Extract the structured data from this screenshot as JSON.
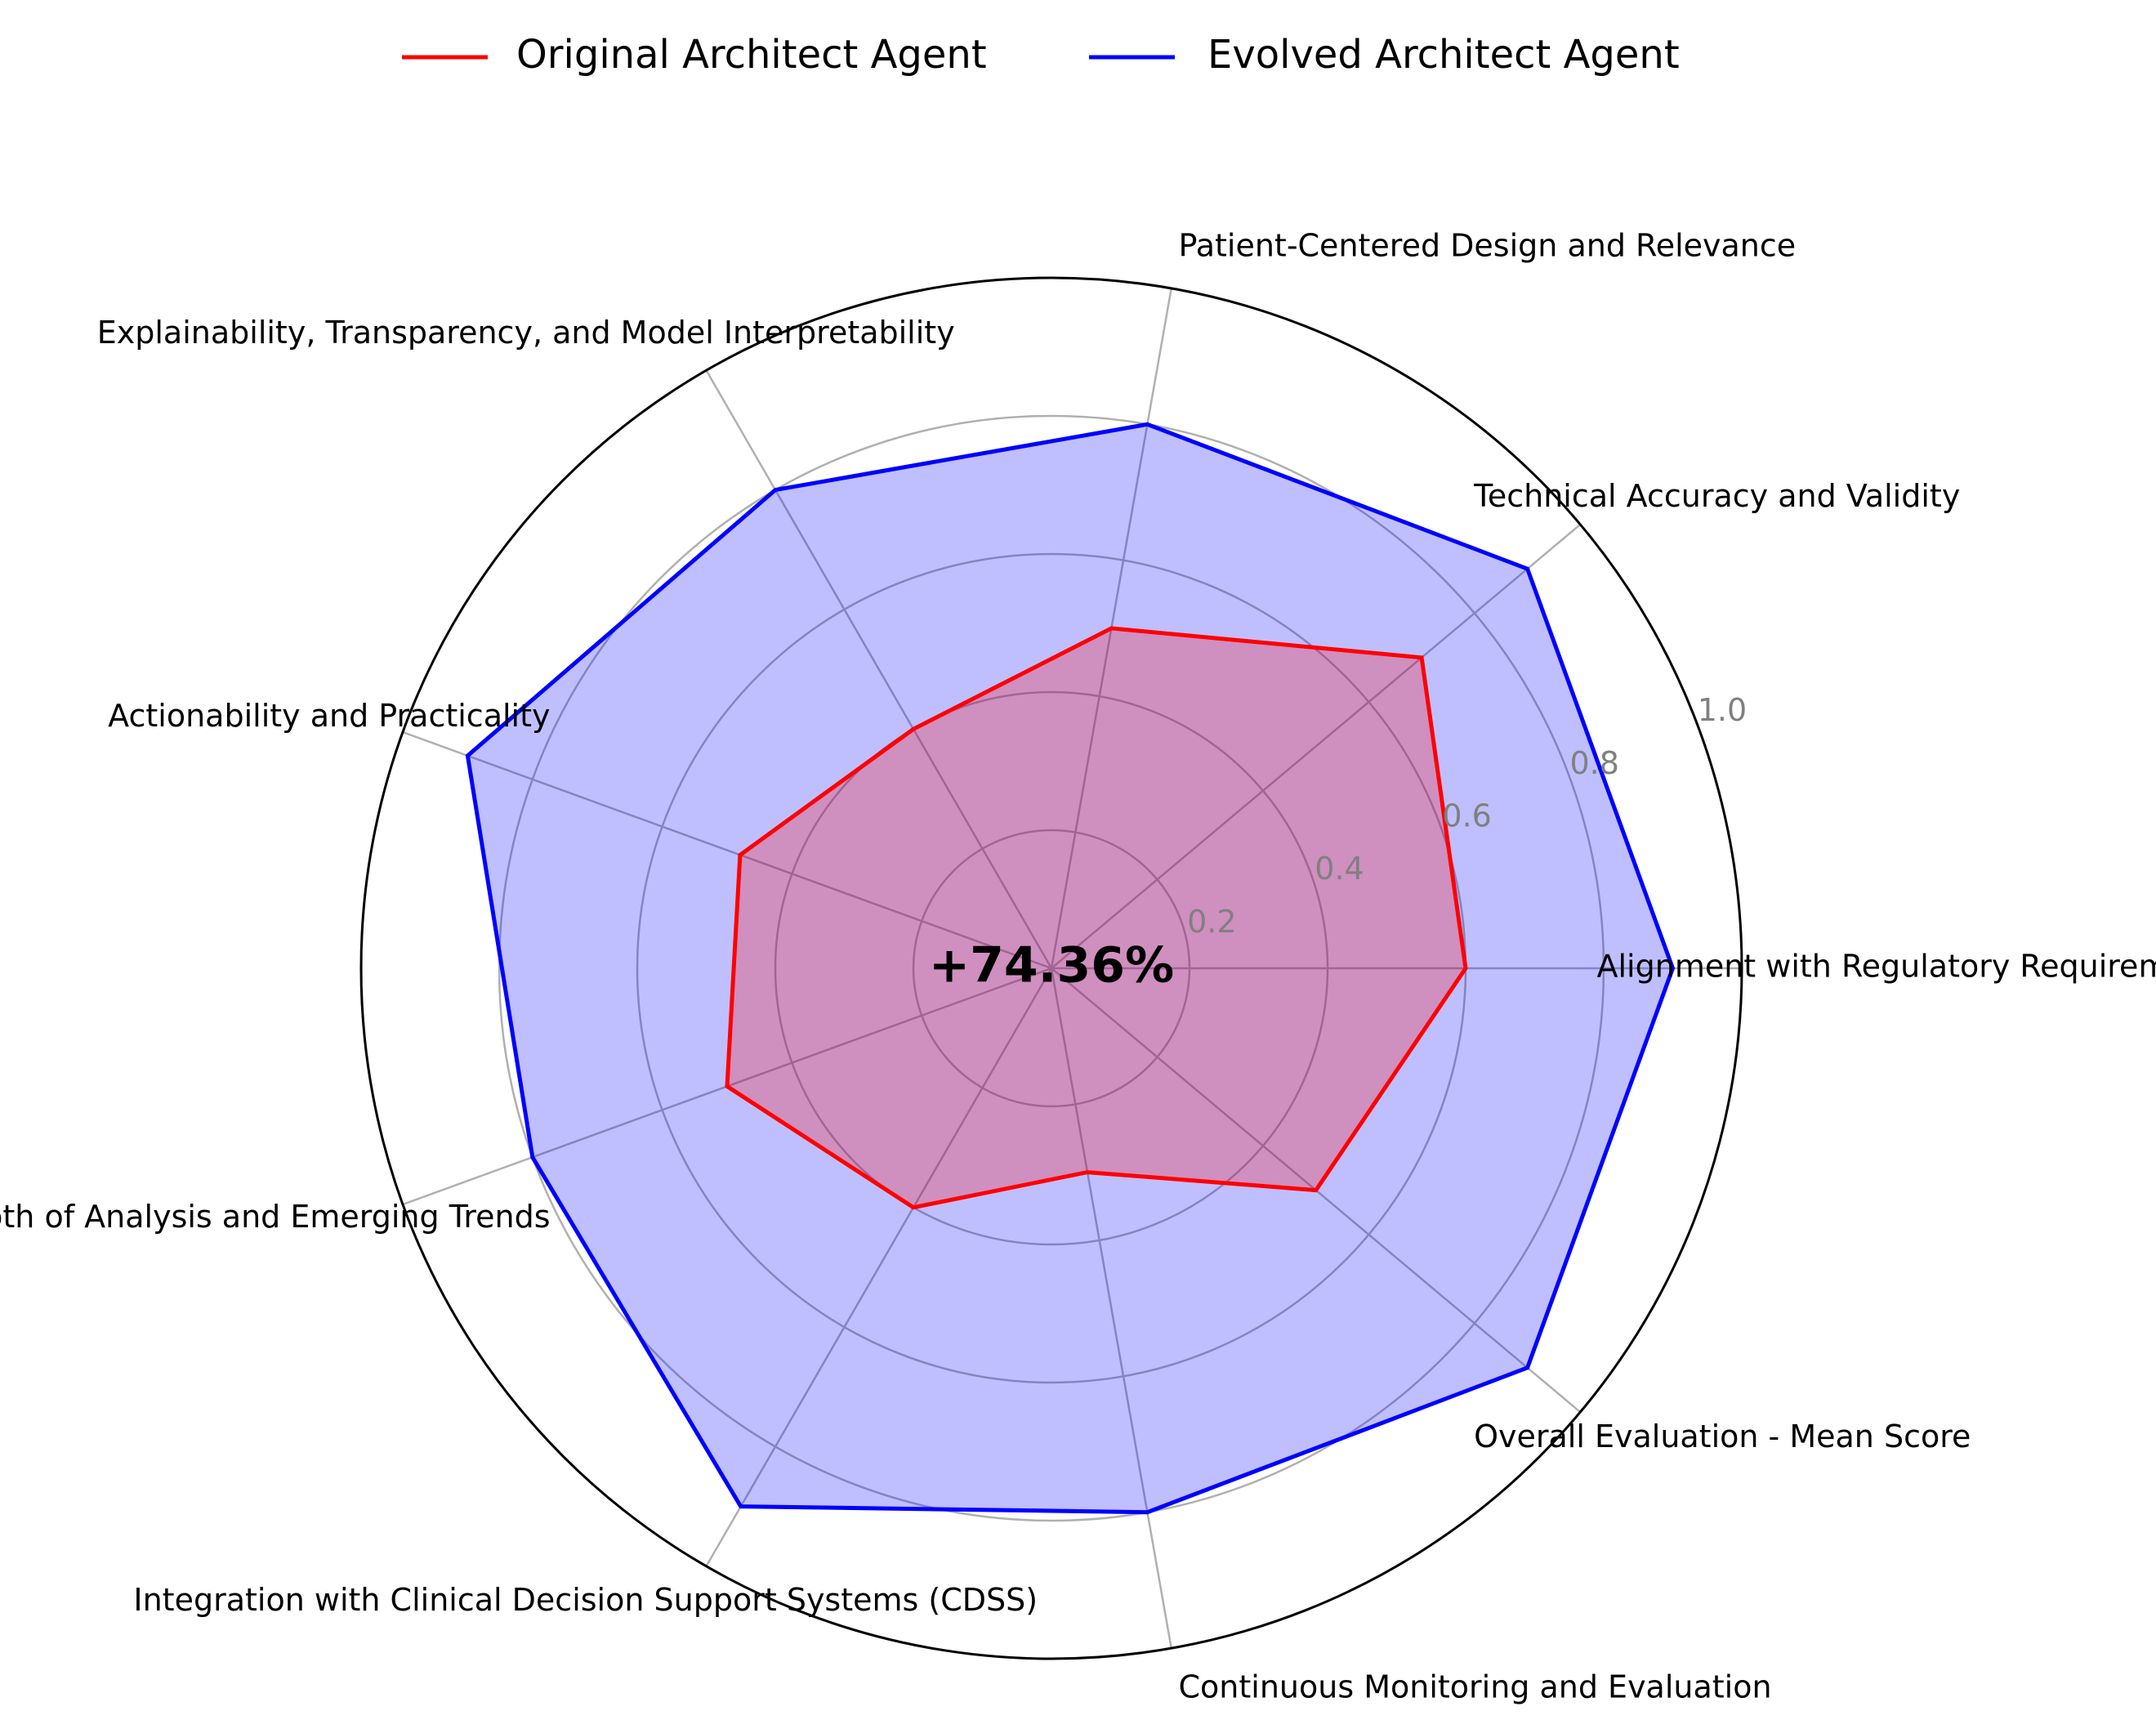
{
  "chart_data": {
    "type": "radar",
    "title": "",
    "categories": [
      "Alignment with Regulatory Requirements",
      "Technical Accuracy and Validity",
      "Patient-Centered Design and Relevance",
      "Explainability, Transparency, and Model Interpretability",
      "Actionability and Practicality",
      "Depth of Analysis and Emerging Trends",
      "Integration with Clinical Decision Support Systems (CDSS)",
      "Continuous Monitoring and Evaluation",
      "Overall Evaluation - Mean Score"
    ],
    "series": [
      {
        "name": "Original Architect Agent",
        "color": "#ff0000",
        "fill": "#ff0000",
        "values": [
          0.6,
          0.7,
          0.5,
          0.4,
          0.48,
          0.5,
          0.4,
          0.3,
          0.5
        ]
      },
      {
        "name": "Evolved Architect Agent",
        "color": "#0000ff",
        "fill": "#0000ff",
        "values": [
          0.9,
          0.9,
          0.8,
          0.8,
          0.9,
          0.8,
          0.9,
          0.8,
          0.9
        ]
      }
    ],
    "rlim": [
      0,
      1.0
    ],
    "ticks": [
      "0.2",
      "0.4",
      "0.6",
      "0.8",
      "1.0"
    ],
    "tick_values": [
      0.2,
      0.4,
      0.6,
      0.8,
      1.0
    ],
    "grid": true,
    "legend_position": "top-center",
    "center_annotation": "+74.36%"
  }
}
